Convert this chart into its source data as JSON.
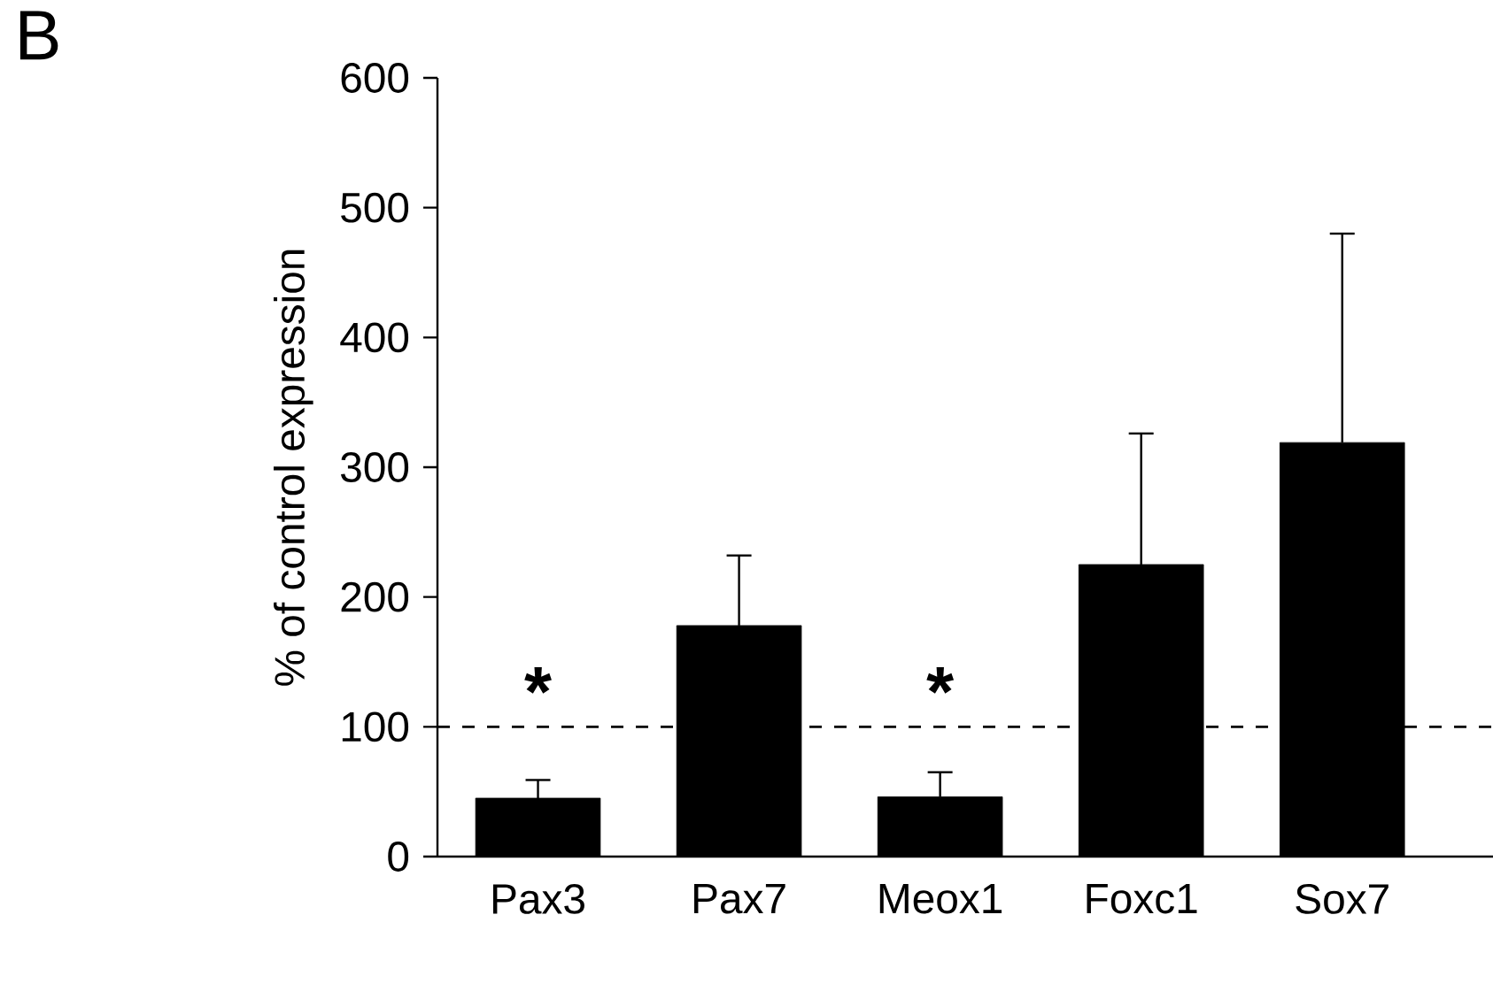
{
  "chart_data": {
    "type": "bar",
    "categories": [
      "Pax3",
      "Pax7",
      "Meox1",
      "Foxc1",
      "Sox7"
    ],
    "values": [
      45,
      178,
      46,
      225,
      319
    ],
    "errors": [
      [
        45,
        59
      ],
      [
        178,
        232
      ],
      [
        46,
        65
      ],
      [
        225,
        326
      ],
      [
        319,
        480
      ]
    ],
    "color": "#000000",
    "ylabel": "% of control expression",
    "ylim": [
      0,
      600
    ],
    "yticks": [
      0,
      100,
      200,
      300,
      400,
      500,
      600
    ],
    "ref_lines": [
      {
        "axis": "y",
        "value": 100,
        "line_style": "dashed",
        "color": "#000000"
      }
    ],
    "annotations": [
      "*",
      "*",
      "B"
    ],
    "grid": false
  }
}
